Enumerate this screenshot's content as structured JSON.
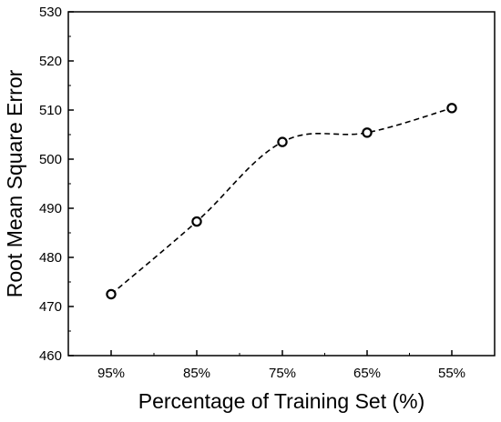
{
  "chart_data": {
    "type": "line",
    "title": "",
    "xlabel": "Percentage of Training Set (%)",
    "ylabel": "Root Mean Square Error",
    "categories": [
      "95%",
      "85%",
      "75%",
      "65%",
      "55%"
    ],
    "series": [
      {
        "values": [
          472.5,
          487.3,
          503.5,
          505.4,
          510.4
        ],
        "marker": "open-circle",
        "line_style": "dashed",
        "color": "#000000"
      }
    ],
    "ylim": [
      460,
      530
    ],
    "yticks": [
      460,
      470,
      480,
      490,
      500,
      510,
      520,
      530
    ],
    "grid": false,
    "legend": "none"
  }
}
